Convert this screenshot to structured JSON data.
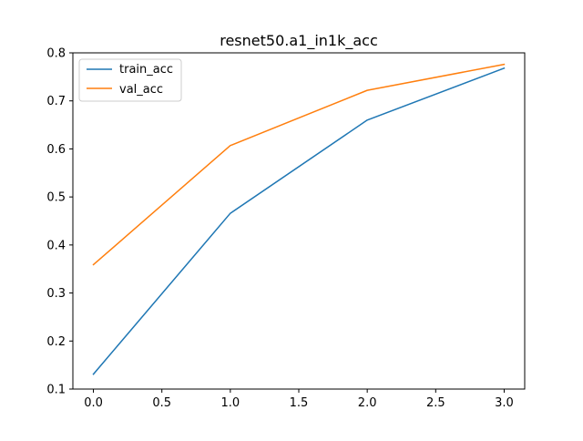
{
  "chart_data": {
    "type": "line",
    "title": "resnet50.a1_in1k_acc",
    "xlabel": "",
    "ylabel": "",
    "x": [
      0,
      1,
      2,
      3
    ],
    "series": [
      {
        "name": "train_acc",
        "values": [
          0.131,
          0.466,
          0.66,
          0.768
        ],
        "color": "#1f77b4"
      },
      {
        "name": "val_acc",
        "values": [
          0.359,
          0.607,
          0.722,
          0.776
        ],
        "color": "#ff7f0e"
      }
    ],
    "xlim": [
      -0.15,
      3.15
    ],
    "ylim": [
      0.1,
      0.8
    ],
    "xticks": [
      0.0,
      0.5,
      1.0,
      1.5,
      2.0,
      2.5,
      3.0
    ],
    "xtick_labels": [
      "0.0",
      "0.5",
      "1.0",
      "1.5",
      "2.0",
      "2.5",
      "3.0"
    ],
    "yticks": [
      0.1,
      0.2,
      0.3,
      0.4,
      0.5,
      0.6,
      0.7,
      0.8
    ],
    "ytick_labels": [
      "0.1",
      "0.2",
      "0.3",
      "0.4",
      "0.5",
      "0.6",
      "0.7",
      "0.8"
    ],
    "grid": false,
    "legend_position": "top-left"
  }
}
